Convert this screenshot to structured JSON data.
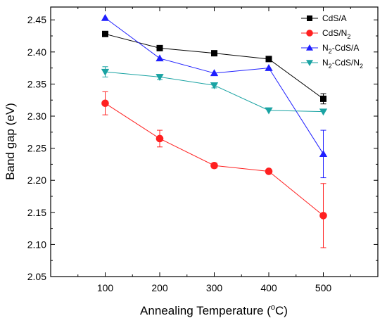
{
  "chart_data": {
    "type": "line",
    "title": "",
    "xlabel": "Annealing Temperature (",
    "xlabel_sup": "o",
    "xlabel_end": "C)",
    "ylabel": "Band gap (eV)",
    "x": [
      100,
      200,
      300,
      400,
      500
    ],
    "x_ticks": [
      "100",
      "200",
      "300",
      "400",
      "500"
    ],
    "y_ticks": [
      "2.05",
      "2.10",
      "2.15",
      "2.20",
      "2.25",
      "2.30",
      "2.35",
      "2.40",
      "2.45"
    ],
    "xlim": [
      0,
      600
    ],
    "ylim": [
      2.05,
      2.47
    ],
    "grid": false,
    "legend_position": "top-right",
    "series": [
      {
        "name": "CdS/A",
        "legend_parts": [
          {
            "t": "CdS/A"
          }
        ],
        "color": "#000000",
        "marker": "square",
        "values": [
          2.428,
          2.406,
          2.398,
          2.389,
          2.327
        ],
        "errors": [
          0.0,
          0.0,
          0.0,
          0.0,
          0.008
        ]
      },
      {
        "name": "CdS/N2",
        "legend_parts": [
          {
            "t": "CdS/N"
          },
          {
            "t": "2",
            "sub": true
          }
        ],
        "color": "#ff2020",
        "marker": "circle",
        "values": [
          2.32,
          2.265,
          2.223,
          2.214,
          2.145
        ],
        "errors": [
          0.018,
          0.013,
          0.004,
          0.0,
          0.05
        ]
      },
      {
        "name": "N2-CdS/A",
        "legend_parts": [
          {
            "t": "N"
          },
          {
            "t": "2",
            "sub": true
          },
          {
            "t": "-CdS/A"
          }
        ],
        "color": "#1f1fff",
        "marker": "triangle-up",
        "values": [
          2.453,
          2.39,
          2.367,
          2.375,
          2.241
        ],
        "errors": [
          0.0,
          0.0,
          0.0,
          0.0,
          0.037
        ]
      },
      {
        "name": "N2-CdS/N2",
        "legend_parts": [
          {
            "t": "N"
          },
          {
            "t": "2",
            "sub": true
          },
          {
            "t": "-CdS/N"
          },
          {
            "t": "2",
            "sub": true
          }
        ],
        "color": "#1aa3a3",
        "marker": "triangle-down",
        "values": [
          2.369,
          2.361,
          2.348,
          2.309,
          2.307
        ],
        "errors": [
          0.008,
          0.004,
          0.004,
          0.0,
          0.0
        ]
      }
    ]
  }
}
